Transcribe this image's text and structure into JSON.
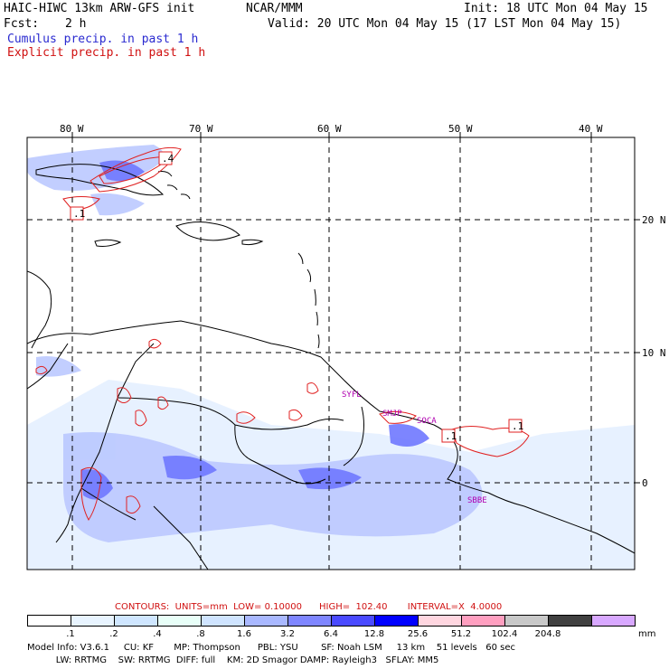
{
  "header": {
    "model": "HAIC-HIWC 13km ARW-GFS init",
    "center": "NCAR/MMM",
    "init": "Init: 18 UTC Mon 04 May 15",
    "fcst_label": "Fcst:",
    "fcst_value": "2 h",
    "valid": "Valid: 20 UTC Mon 04 May 15 (17 LST Mon 04 May 15)",
    "cumulus_label": "Cumulus precip. in past 1 h",
    "explicit_label": "Explicit precip. in past 1 h"
  },
  "map": {
    "lon_ticks": [
      "80 W",
      "70 W",
      "60 W",
      "50 W",
      "40 W"
    ],
    "lat_ticks": [
      "20 N",
      "10 N",
      "0"
    ],
    "contour_labels": [
      ".4",
      ".1",
      ".1",
      ".1"
    ],
    "station_labels": [
      "SYFL",
      "SMJP",
      "SOCA",
      "SBBE"
    ]
  },
  "contours": {
    "text": "CONTOURS:  UNITS=mm  LOW= 0.10000      HIGH=  102.40       INTERVAL=X  4.0000"
  },
  "colorbar": {
    "levels": [
      ".1",
      ".2",
      ".4",
      ".8",
      "1.6",
      "3.2",
      "6.4",
      "12.8",
      "25.6",
      "51.2",
      "102.4",
      "204.8"
    ],
    "units": "mm",
    "colors": [
      "#ffffff",
      "#e8f4ff",
      "#cfe6ff",
      "#e8fff8",
      "#cfe4ff",
      "#a9b8ff",
      "#7f86ff",
      "#4a4aff",
      "#0000ff",
      "#ffd6e0",
      "#ff9fc0",
      "#c8c8c8",
      "#404040",
      "#d8a8ff"
    ]
  },
  "footer": {
    "line1": "Model Info: V3.6.1     CU: KF       MP: Thompson      PBL: YSU        SF: Noah LSM     13 km    51 levels   60 sec",
    "line2": "          LW: RRTMG    SW: RRTMG  DIFF: full    KM: 2D Smagor DAMP: Rayleigh3   SFLAY: MM5"
  }
}
